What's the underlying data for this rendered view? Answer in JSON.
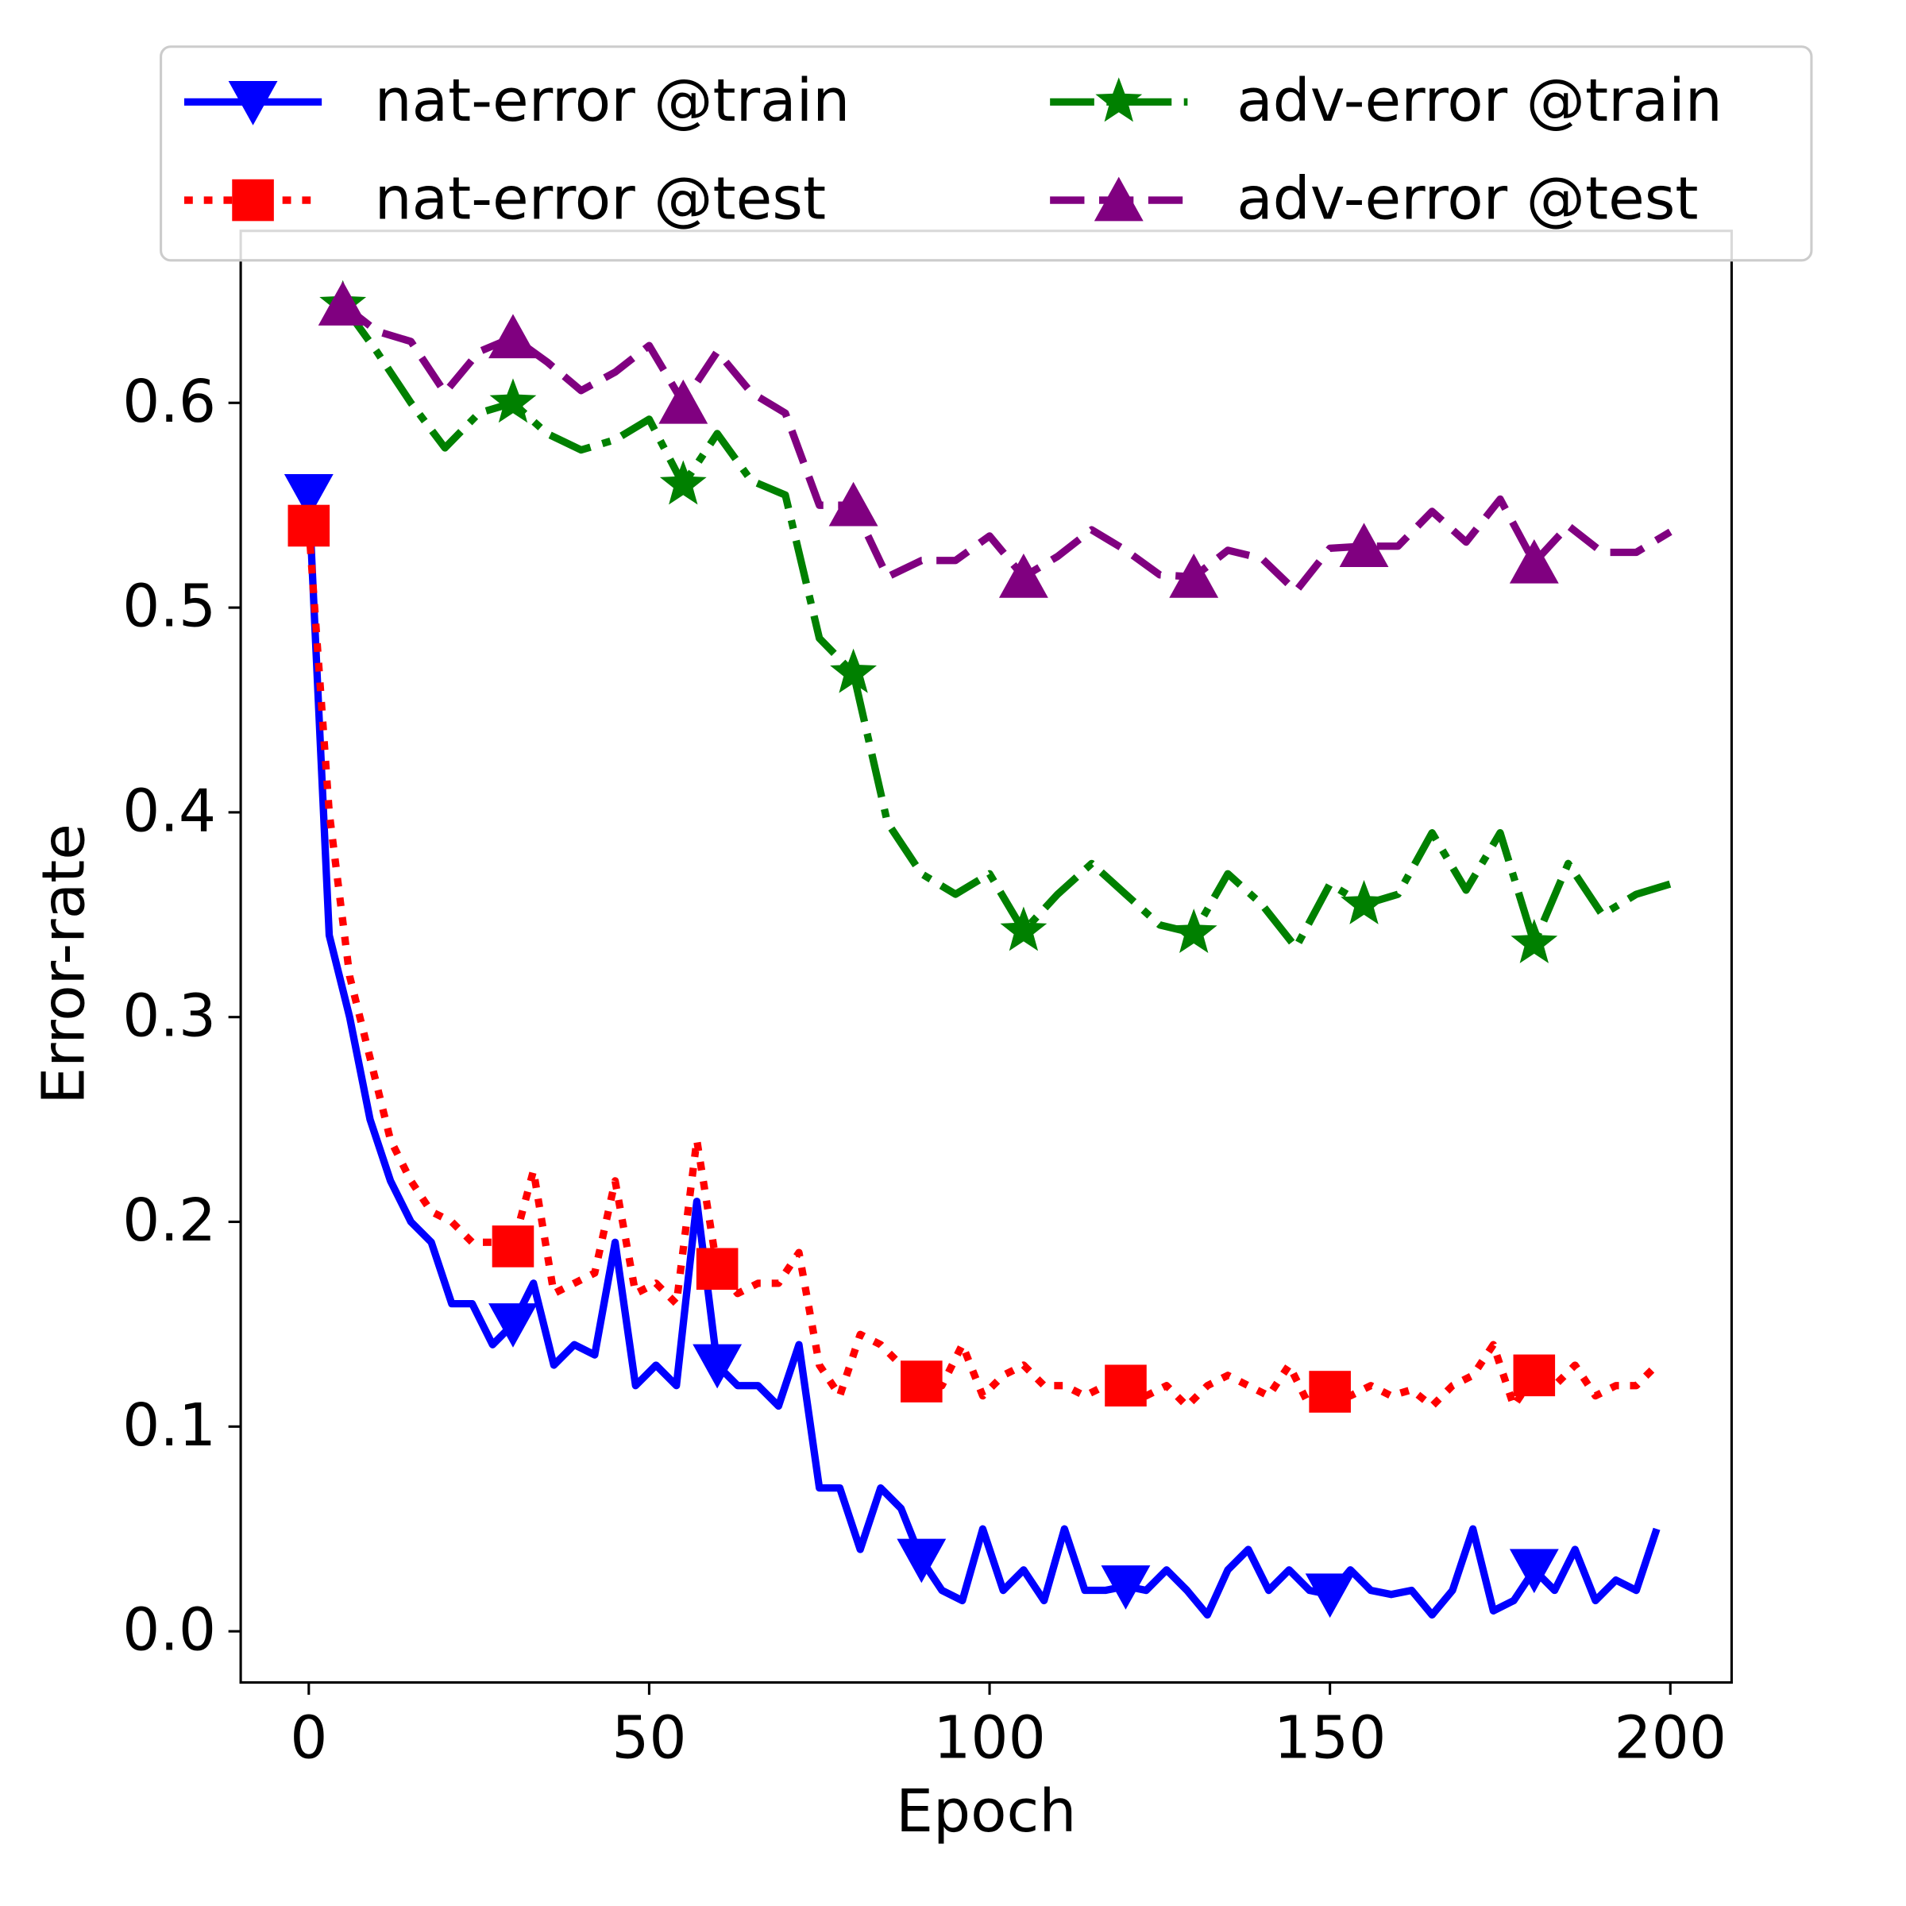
{
  "chart_data": {
    "type": "line",
    "xlabel": "Epoch",
    "ylabel": "Error-rate",
    "xlim": [
      -10,
      209
    ],
    "ylim": [
      -0.025,
      0.684
    ],
    "xticks": [
      0,
      50,
      100,
      150,
      200
    ],
    "yticks": [
      {
        "value": 0,
        "label": "0.0"
      },
      0.1,
      0.2,
      0.3,
      0.4,
      0.5,
      0.6
    ],
    "legend": "upper center",
    "series": [
      {
        "name": "nat-error @train",
        "color": "#0000ff",
        "linestyle": "solid",
        "marker": "triangle-down",
        "markevery": 10,
        "x": [
          0,
          3,
          6,
          9,
          12,
          15,
          18,
          21,
          24,
          27,
          30,
          33,
          36,
          39,
          42,
          45,
          48,
          51,
          54,
          57,
          60,
          63,
          66,
          69,
          72,
          75,
          78,
          81,
          84,
          87,
          90,
          93,
          96,
          99,
          102,
          105,
          108,
          111,
          114,
          117,
          120,
          123,
          126,
          129,
          132,
          135,
          138,
          141,
          144,
          147,
          150,
          153,
          156,
          159,
          162,
          165,
          168,
          171,
          174,
          177,
          180,
          183,
          186,
          189,
          192,
          195,
          198
        ],
        "values": [
          0.555,
          0.34,
          0.3,
          0.25,
          0.22,
          0.2,
          0.19,
          0.16,
          0.16,
          0.14,
          0.15,
          0.17,
          0.13,
          0.14,
          0.135,
          0.19,
          0.12,
          0.13,
          0.12,
          0.21,
          0.13,
          0.12,
          0.12,
          0.11,
          0.14,
          0.07,
          0.07,
          0.04,
          0.07,
          0.06,
          0.035,
          0.02,
          0.015,
          0.05,
          0.02,
          0.03,
          0.015,
          0.05,
          0.02,
          0.02,
          0.022,
          0.02,
          0.03,
          0.02,
          0.008,
          0.03,
          0.04,
          0.02,
          0.03,
          0.02,
          0.018,
          0.03,
          0.02,
          0.018,
          0.02,
          0.008,
          0.02,
          0.05,
          0.01,
          0.015,
          0.03,
          0.02,
          0.04,
          0.015,
          0.025,
          0.02,
          0.05
        ]
      },
      {
        "name": "nat-error @test",
        "color": "#ff0000",
        "linestyle": "dotted",
        "marker": "square",
        "markevery": 10,
        "x": [
          0,
          3,
          6,
          9,
          12,
          15,
          18,
          21,
          24,
          27,
          30,
          33,
          36,
          39,
          42,
          45,
          48,
          51,
          54,
          57,
          60,
          63,
          66,
          69,
          72,
          75,
          78,
          81,
          84,
          87,
          90,
          93,
          96,
          99,
          102,
          105,
          108,
          111,
          114,
          117,
          120,
          123,
          126,
          129,
          132,
          135,
          138,
          141,
          144,
          147,
          150,
          153,
          156,
          159,
          162,
          165,
          168,
          171,
          174,
          177,
          180,
          183,
          186,
          189,
          192,
          195,
          198
        ],
        "values": [
          0.54,
          0.4,
          0.32,
          0.28,
          0.24,
          0.22,
          0.205,
          0.2,
          0.19,
          0.19,
          0.188,
          0.225,
          0.165,
          0.17,
          0.175,
          0.22,
          0.165,
          0.17,
          0.16,
          0.24,
          0.177,
          0.165,
          0.17,
          0.17,
          0.185,
          0.13,
          0.115,
          0.145,
          0.14,
          0.13,
          0.122,
          0.12,
          0.14,
          0.115,
          0.125,
          0.13,
          0.12,
          0.12,
          0.115,
          0.12,
          0.12,
          0.115,
          0.12,
          0.11,
          0.12,
          0.125,
          0.12,
          0.115,
          0.13,
          0.11,
          0.117,
          0.115,
          0.12,
          0.115,
          0.118,
          0.11,
          0.12,
          0.125,
          0.14,
          0.11,
          0.125,
          0.12,
          0.13,
          0.115,
          0.12,
          0.12,
          0.13
        ]
      },
      {
        "name": "adv-error @train",
        "color": "#008000",
        "linestyle": "dashdot",
        "marker": "star",
        "markevery": 5,
        "x": [
          5,
          10,
          15,
          20,
          25,
          30,
          35,
          40,
          45,
          50,
          55,
          60,
          65,
          70,
          75,
          80,
          85,
          90,
          95,
          100,
          105,
          110,
          115,
          120,
          125,
          130,
          135,
          140,
          145,
          150,
          155,
          160,
          165,
          170,
          175,
          180,
          185,
          190,
          195,
          200
        ],
        "values": [
          0.648,
          0.625,
          0.6,
          0.578,
          0.595,
          0.6,
          0.585,
          0.577,
          0.582,
          0.592,
          0.56,
          0.585,
          0.562,
          0.555,
          0.485,
          0.468,
          0.395,
          0.37,
          0.36,
          0.37,
          0.342,
          0.36,
          0.375,
          0.36,
          0.345,
          0.341,
          0.37,
          0.355,
          0.334,
          0.365,
          0.355,
          0.36,
          0.39,
          0.362,
          0.39,
          0.336,
          0.375,
          0.35,
          0.36,
          0.365
        ]
      },
      {
        "name": "adv-error @test",
        "color": "#800080",
        "linestyle": "dashed",
        "marker": "triangle-up",
        "markevery": 5,
        "x": [
          5,
          10,
          15,
          20,
          25,
          30,
          35,
          40,
          45,
          50,
          55,
          60,
          65,
          70,
          75,
          80,
          85,
          90,
          95,
          100,
          105,
          110,
          115,
          120,
          125,
          130,
          135,
          140,
          145,
          150,
          155,
          160,
          165,
          170,
          175,
          180,
          185,
          190,
          195,
          200
        ],
        "values": [
          0.648,
          0.635,
          0.63,
          0.605,
          0.625,
          0.632,
          0.62,
          0.606,
          0.615,
          0.628,
          0.6,
          0.625,
          0.605,
          0.595,
          0.55,
          0.55,
          0.515,
          0.523,
          0.523,
          0.535,
          0.515,
          0.525,
          0.538,
          0.528,
          0.516,
          0.515,
          0.528,
          0.524,
          0.508,
          0.529,
          0.53,
          0.53,
          0.547,
          0.532,
          0.553,
          0.522,
          0.54,
          0.527,
          0.527,
          0.537
        ]
      }
    ]
  }
}
